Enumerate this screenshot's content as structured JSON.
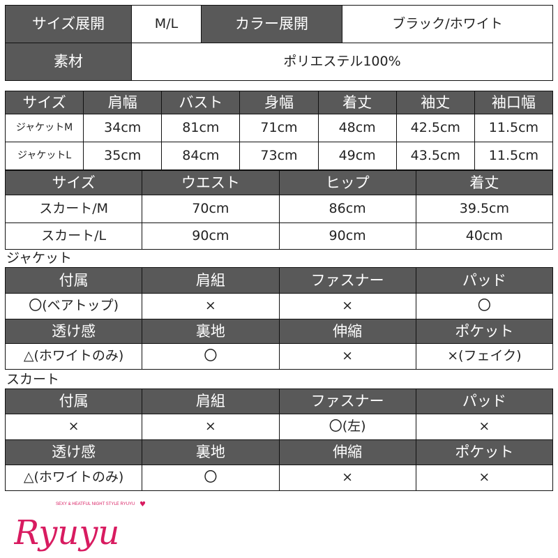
{
  "summary": {
    "size_label": "サイズ展開",
    "size_value": "M/L",
    "color_label": "カラー展開",
    "color_value": "ブラック/ホワイト",
    "material_label": "素材",
    "material_value": "ポリエステル100%"
  },
  "jacket_sizes": {
    "headers": [
      "サイズ",
      "肩幅",
      "バスト",
      "身幅",
      "着丈",
      "袖丈",
      "袖口幅"
    ],
    "rows": [
      [
        "ジャケットM",
        "34cm",
        "81cm",
        "71cm",
        "48cm",
        "42.5cm",
        "11.5cm"
      ],
      [
        "ジャケットL",
        "35cm",
        "84cm",
        "73cm",
        "49cm",
        "43.5cm",
        "11.5cm"
      ]
    ]
  },
  "skirt_sizes": {
    "headers": [
      "サイズ",
      "ウエスト",
      "ヒップ",
      "着丈"
    ],
    "rows": [
      [
        "スカート/M",
        "70cm",
        "86cm",
        "39.5cm"
      ],
      [
        "スカート/L",
        "90cm",
        "90cm",
        "40cm"
      ]
    ]
  },
  "jacket": {
    "title": "ジャケット",
    "h1": [
      "付属",
      "肩組",
      "ファスナー",
      "パッド"
    ],
    "r1": [
      "〇(ベアトップ)",
      "×",
      "×",
      "〇"
    ],
    "h2": [
      "透け感",
      "裏地",
      "伸縮",
      "ポケット"
    ],
    "r2": [
      "△(ホワイトのみ)",
      "〇",
      "×",
      "×(フェイク)"
    ]
  },
  "skirt": {
    "title": "スカート",
    "h1": [
      "付属",
      "肩組",
      "ファスナー",
      "パッド"
    ],
    "r1": [
      "×",
      "×",
      "〇(左)",
      "×"
    ],
    "h2": [
      "透け感",
      "裏地",
      "伸縮",
      "ポケット"
    ],
    "r2": [
      "△(ホワイトのみ)",
      "〇",
      "×",
      "×"
    ]
  },
  "logo": {
    "text": "Ryuyu",
    "tagline": "SEXY & HEATFUL NIGHT STYLE RYUYU",
    "color": "#d81b60"
  }
}
